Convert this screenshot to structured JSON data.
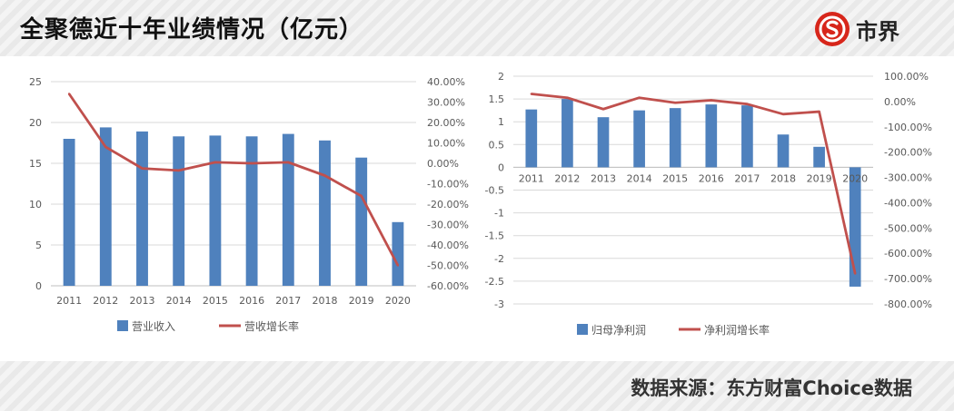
{
  "header": {
    "title": "全聚德近十年业绩情况（亿元）",
    "logo_text": "市界"
  },
  "footer": {
    "source": "数据来源：东方财富Choice数据"
  },
  "colors": {
    "bar": "#4f81bd",
    "line": "#c0504d",
    "grid": "#d9d9d9",
    "axis": "#bfbfbf",
    "logo": "#d7261b"
  },
  "chart_data": [
    {
      "type": "bar",
      "categories": [
        "2011",
        "2012",
        "2013",
        "2014",
        "2015",
        "2016",
        "2017",
        "2018",
        "2019",
        "2020"
      ],
      "series": [
        {
          "name": "营业收入",
          "type": "bar",
          "axis": "left",
          "values": [
            18.0,
            19.4,
            18.9,
            18.3,
            18.4,
            18.3,
            18.6,
            17.8,
            15.7,
            7.8
          ]
        },
        {
          "name": "营收增长率",
          "type": "line",
          "axis": "right",
          "values": [
            34.0,
            8.0,
            -2.5,
            -3.5,
            0.5,
            0.0,
            0.5,
            -6.0,
            -16.0,
            -50.0
          ]
        }
      ],
      "y_left": {
        "min": 0,
        "max": 25,
        "step": 5,
        "ticks": [
          "0",
          "5",
          "10",
          "15",
          "20",
          "25"
        ]
      },
      "y_right": {
        "min": -60,
        "max": 40,
        "step": 10,
        "ticks": [
          "-60.00%",
          "-50.00%",
          "-40.00%",
          "-30.00%",
          "-20.00%",
          "-10.00%",
          "0.00%",
          "10.00%",
          "20.00%",
          "30.00%",
          "40.00%"
        ]
      },
      "grid": true,
      "legend": "bottom"
    },
    {
      "type": "bar",
      "categories": [
        "2011",
        "2012",
        "2013",
        "2014",
        "2015",
        "2016",
        "2017",
        "2018",
        "2019",
        "2020"
      ],
      "series": [
        {
          "name": "归母净利润",
          "type": "bar",
          "axis": "left",
          "values": [
            1.27,
            1.5,
            1.1,
            1.25,
            1.3,
            1.38,
            1.36,
            0.72,
            0.45,
            -2.62
          ]
        },
        {
          "name": "净利润增长率",
          "type": "line",
          "axis": "right",
          "values": [
            30.0,
            15.0,
            -30.0,
            15.0,
            -5.0,
            5.0,
            -10.0,
            -50.0,
            -40.0,
            -680.0
          ]
        }
      ],
      "y_left": {
        "min": -3,
        "max": 2,
        "step": 0.5,
        "ticks": [
          "-3",
          "-2.5",
          "-2",
          "-1.5",
          "-1",
          "-0.5",
          "0",
          "0.5",
          "1",
          "1.5",
          "2"
        ]
      },
      "y_right": {
        "min": -800,
        "max": 100,
        "step": 100,
        "ticks": [
          "-800.00%",
          "-700.00%",
          "-600.00%",
          "-500.00%",
          "-400.00%",
          "-300.00%",
          "-200.00%",
          "-100.00%",
          "0.00%",
          "100.00%"
        ]
      },
      "grid": true,
      "legend": "bottom"
    }
  ]
}
